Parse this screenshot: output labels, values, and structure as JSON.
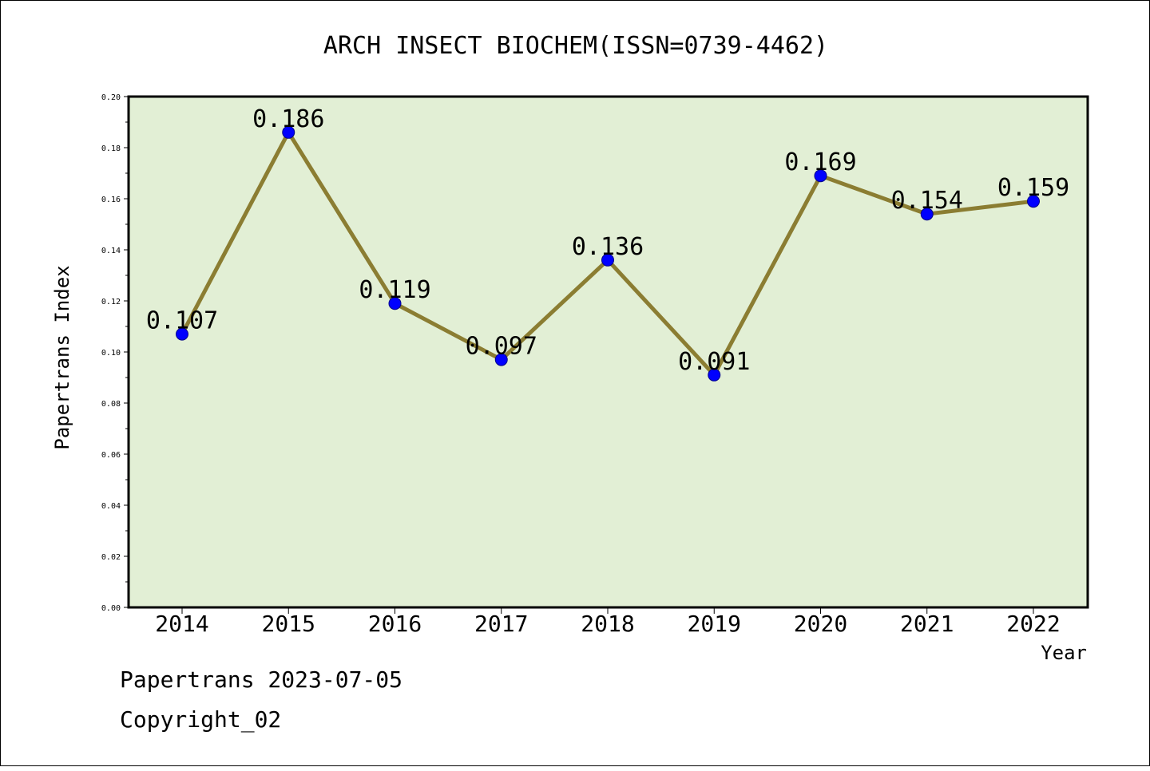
{
  "chart_data": {
    "type": "line",
    "title": "ARCH INSECT BIOCHEM(ISSN=0739-4462)",
    "xlabel": "Year",
    "ylabel": "Papertrans Index",
    "categories": [
      "2014",
      "2015",
      "2016",
      "2017",
      "2018",
      "2019",
      "2020",
      "2021",
      "2022"
    ],
    "values": [
      0.107,
      0.186,
      0.119,
      0.097,
      0.136,
      0.091,
      0.169,
      0.154,
      0.159
    ],
    "data_labels": [
      "0.107",
      "0.186",
      "0.119",
      "0.097",
      "0.136",
      "0.091",
      "0.169",
      "0.154",
      "0.159"
    ],
    "ylim": [
      0,
      0.2
    ],
    "yticks": [
      "0.00",
      "0.02",
      "0.04",
      "0.06",
      "0.08",
      "0.10",
      "0.12",
      "0.14",
      "0.16",
      "0.18",
      "0.20"
    ],
    "grid": false,
    "colors": {
      "line": "#8b7d32",
      "marker": "#0000ff",
      "plot_background": "#e2efd5"
    }
  },
  "footer": {
    "line1": "Papertrans 2023-07-05",
    "line2": "Copyright_02"
  }
}
